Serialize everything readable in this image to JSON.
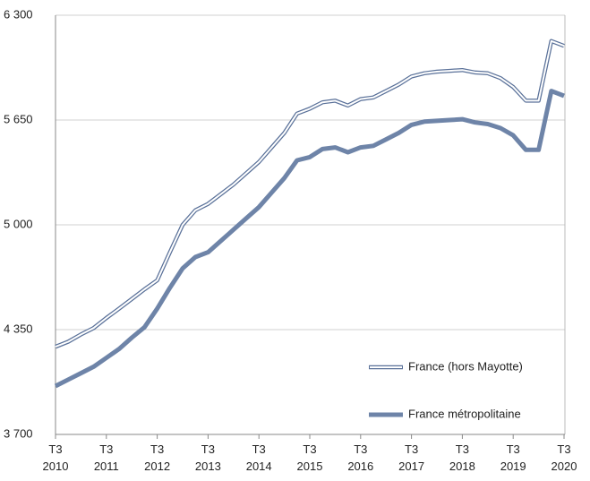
{
  "chart_data": {
    "type": "line",
    "categories": [
      "T3 2010",
      null,
      null,
      null,
      "T3 2011",
      null,
      null,
      null,
      "T3 2012",
      null,
      null,
      null,
      "T3 2013",
      null,
      null,
      null,
      "T3 2014",
      null,
      null,
      null,
      "T3 2015",
      null,
      null,
      null,
      "T3 2016",
      null,
      null,
      null,
      "T3 2017",
      null,
      null,
      null,
      "T3 2018",
      null,
      null,
      null,
      "T3 2019",
      null,
      null,
      null,
      "T3 2020"
    ],
    "series": [
      {
        "name": "France (hors Mayotte)",
        "color": "#5a7199",
        "values": [
          4244,
          4275,
          4320,
          4360,
          4422,
          4480,
          4540,
          4600,
          4656,
          4830,
          5000,
          5090,
          5130,
          5190,
          5250,
          5320,
          5390,
          5480,
          5570,
          5690,
          5720,
          5760,
          5770,
          5740,
          5780,
          5790,
          5830,
          5870,
          5920,
          5940,
          5950,
          5955,
          5960,
          5945,
          5940,
          5910,
          5855,
          5770,
          5770,
          6140,
          6110
        ]
      },
      {
        "name": "France métropolitaine",
        "color": "#6e84a8",
        "values": [
          4000,
          4040,
          4080,
          4120,
          4175,
          4230,
          4300,
          4365,
          4480,
          4610,
          4730,
          4800,
          4830,
          4900,
          4970,
          5040,
          5110,
          5200,
          5290,
          5400,
          5420,
          5470,
          5480,
          5450,
          5480,
          5490,
          5530,
          5570,
          5620,
          5640,
          5645,
          5650,
          5655,
          5635,
          5625,
          5600,
          5555,
          5465,
          5465,
          5830,
          5800
        ]
      }
    ],
    "ylim": [
      3700,
      6300
    ],
    "yticks": [
      {
        "value": 3700,
        "label": "3 700"
      },
      {
        "value": 4350,
        "label": "4 350"
      },
      {
        "value": 5000,
        "label": "5 000"
      },
      {
        "value": 5650,
        "label": "5 650"
      },
      {
        "value": 6300,
        "label": "6 300"
      }
    ],
    "grid": true,
    "legend": "lower right"
  }
}
